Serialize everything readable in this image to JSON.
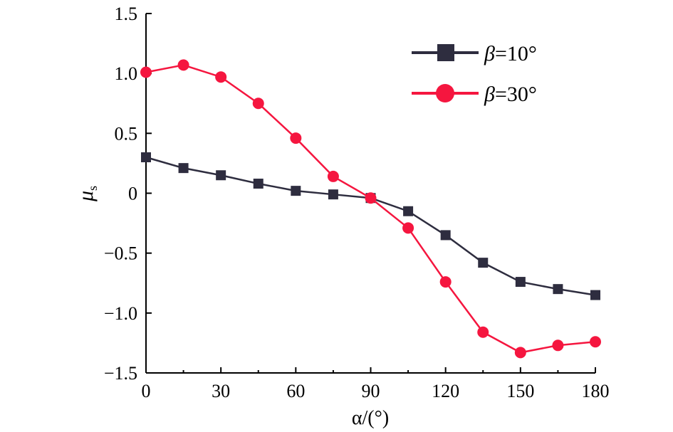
{
  "chart_data": {
    "type": "line",
    "xlabel": "α/(°)",
    "ylabel": "μs",
    "xlim": [
      0,
      180
    ],
    "ylim": [
      -1.5,
      1.5
    ],
    "xticks": [
      "0",
      "30",
      "60",
      "90",
      "120",
      "150",
      "180"
    ],
    "yticks": [
      "−1.5",
      "−1.0",
      "−0.5",
      "0",
      "0.5",
      "1.0",
      "1.5"
    ],
    "grid": false,
    "legend_position": "top-right",
    "x": [
      0,
      15,
      30,
      45,
      60,
      75,
      90,
      105,
      120,
      135,
      150,
      165,
      180
    ],
    "series": [
      {
        "name": "β=10°",
        "marker": "square",
        "color": "#2e2d3f",
        "values": [
          0.3,
          0.21,
          0.15,
          0.08,
          0.02,
          -0.01,
          -0.04,
          -0.15,
          -0.35,
          -0.58,
          -0.74,
          -0.8,
          -0.85
        ]
      },
      {
        "name": "β=30°",
        "marker": "circle",
        "color": "#f5163f",
        "values": [
          1.01,
          1.07,
          0.97,
          0.75,
          0.46,
          0.14,
          -0.04,
          -0.29,
          -0.74,
          -1.16,
          -1.33,
          -1.27,
          -1.24
        ]
      }
    ]
  }
}
